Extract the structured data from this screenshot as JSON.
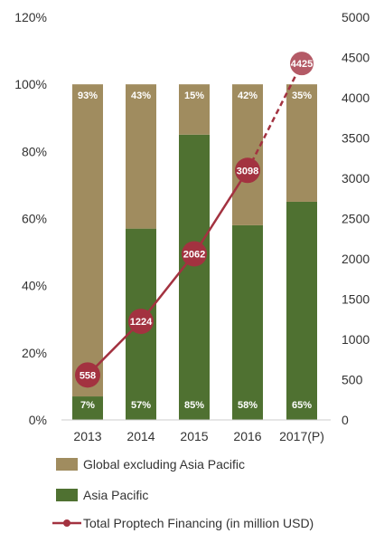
{
  "chart_data": {
    "type": "bar",
    "stacked": true,
    "percent_stacked": true,
    "categories": [
      "2013",
      "2014",
      "2015",
      "2016",
      "2017(P)"
    ],
    "series": [
      {
        "name": "Asia Pacific",
        "values": [
          7,
          57,
          85,
          58,
          65
        ],
        "labels": [
          "7%",
          "57%",
          "85%",
          "58%",
          "65%"
        ],
        "color": "#4f7131"
      },
      {
        "name": "Global excluding Asia Pacific",
        "values": [
          93,
          43,
          15,
          42,
          35
        ],
        "labels": [
          "93%",
          "43%",
          "15%",
          "42%",
          "35%"
        ],
        "color": "#a08c5f"
      }
    ],
    "line_series": {
      "name": "Total Proptech Financing (in million USD)",
      "values": [
        558,
        1224,
        2062,
        3098,
        4425
      ],
      "color": "#a33240",
      "marker_color": "#b45a66",
      "projected_from_index": 3
    },
    "left_axis": {
      "ticks": [
        "0%",
        "20%",
        "40%",
        "60%",
        "80%",
        "100%",
        "120%"
      ],
      "ylim": [
        0,
        120
      ]
    },
    "right_axis": {
      "ticks": [
        "0",
        "500",
        "1000",
        "1500",
        "2000",
        "2500",
        "3000",
        "3500",
        "4000",
        "4500",
        "5000"
      ],
      "ylim": [
        0,
        5000
      ]
    },
    "legend_position": "bottom",
    "grid": false
  }
}
